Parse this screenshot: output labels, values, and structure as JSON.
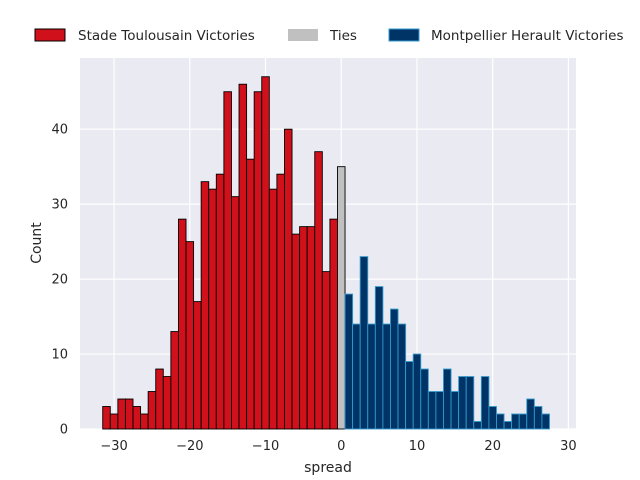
{
  "chart_data": {
    "type": "bar",
    "xlabel": "spread",
    "ylabel": "Count",
    "xlim": [
      -34.5,
      31
    ],
    "ylim": [
      0,
      49.5
    ],
    "bin_width": 1,
    "grid": true,
    "legend_placement": "top",
    "x_ticks": [
      -30,
      -20,
      -10,
      0,
      10,
      20,
      30
    ],
    "x_tick_labels": [
      "−30",
      "−20",
      "−10",
      "0",
      "10",
      "20",
      "30"
    ],
    "y_ticks": [
      0,
      10,
      20,
      30,
      40
    ],
    "y_tick_labels": [
      "0",
      "10",
      "20",
      "30",
      "40"
    ],
    "series": [
      {
        "name": "Stade Toulousain Victories",
        "color": "#d0101a",
        "edge_color": "#000000",
        "x": [
          -31,
          -30,
          -29,
          -28,
          -27,
          -26,
          -25,
          -24,
          -23,
          -22,
          -21,
          -20,
          -19,
          -18,
          -17,
          -16,
          -15,
          -14,
          -13,
          -12,
          -11,
          -10,
          -9,
          -8,
          -7,
          -6,
          -5,
          -4,
          -3,
          -2,
          -1
        ],
        "values": [
          3,
          2,
          4,
          4,
          3,
          2,
          5,
          8,
          7,
          13,
          28,
          25,
          17,
          33,
          32,
          34,
          45,
          31,
          46,
          36,
          45,
          47,
          32,
          34,
          40,
          26,
          27,
          27,
          37,
          21,
          28
        ]
      },
      {
        "name": "Ties",
        "color": "#c0c0c0",
        "edge_color": "#000000",
        "x": [
          0
        ],
        "values": [
          35
        ]
      },
      {
        "name": "Montpellier Herault Victories",
        "color": "#003366",
        "edge_color": "#3399cc",
        "x": [
          1,
          2,
          3,
          4,
          5,
          6,
          7,
          8,
          9,
          10,
          11,
          12,
          13,
          14,
          15,
          16,
          17,
          18,
          19,
          20,
          21,
          22,
          23,
          24,
          25,
          26,
          27
        ],
        "values": [
          18,
          14,
          23,
          14,
          19,
          14,
          16,
          14,
          9,
          10,
          8,
          5,
          5,
          8,
          5,
          7,
          7,
          1,
          7,
          3,
          2,
          1,
          2,
          2,
          4,
          3,
          2
        ]
      }
    ]
  }
}
